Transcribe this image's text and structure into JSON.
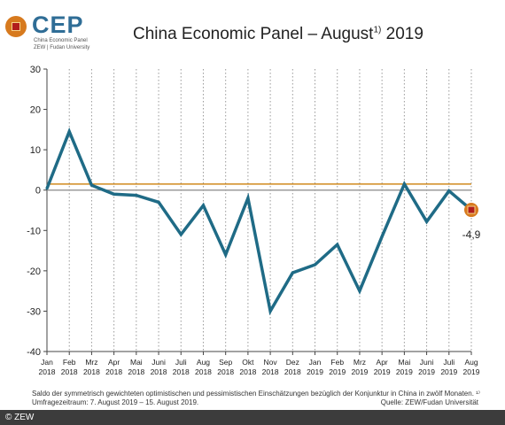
{
  "logo": {
    "text": "CEP",
    "sub1": "China Economic Panel",
    "sub2": "ZEW | Fudan University"
  },
  "title": {
    "main": "China Economic Panel – August",
    "sup": "1)",
    "year": "2019"
  },
  "chart_data": {
    "type": "line",
    "categories": [
      "Jan",
      "Feb",
      "Mrz",
      "Apr",
      "Mai",
      "Juni",
      "Juli",
      "Aug",
      "Sep",
      "Okt",
      "Nov",
      "Dez",
      "Jan",
      "Feb",
      "Mrz",
      "Apr",
      "Mai",
      "Juni",
      "Juli",
      "Aug"
    ],
    "years": [
      "2018",
      "2018",
      "2018",
      "2018",
      "2018",
      "2018",
      "2018",
      "2018",
      "2018",
      "2018",
      "2018",
      "2018",
      "2019",
      "2019",
      "2019",
      "2019",
      "2019",
      "2019",
      "2019",
      "2019"
    ],
    "series": [
      {
        "values": [
          0.4,
          14.5,
          1.2,
          -1.0,
          -1.3,
          -3.0,
          -11.0,
          -3.8,
          -16.0,
          -2.0,
          -30.0,
          -20.5,
          -18.5,
          -13.5,
          -25.0,
          -11.5,
          1.5,
          -7.8,
          -0.2,
          -4.9
        ]
      }
    ],
    "reference_line": 1.5,
    "ylim": [
      -40,
      30
    ],
    "yticks": [
      30,
      20,
      10,
      0,
      -10,
      -20,
      -30,
      -40
    ],
    "last_value_label": "-4,9",
    "grid": "vertical dotted",
    "colors": {
      "line": "#1f6b86",
      "reference": "#d18a1e",
      "zero": "#888888",
      "marker_outer": "#d77a1e",
      "marker_inner": "#b11c1c"
    }
  },
  "footnote": "Saldo der symmetrisch gewichteten optimistischen und pessimistischen Einschätzungen bezüglich der Konjunktur in China in zwölf Monaten. ¹⁾ Umfragezeitraum: 7. August 2019 – 15. August 2019.",
  "source": "Quelle: ZEW/Fudan Universität",
  "copyright": "© ZEW"
}
